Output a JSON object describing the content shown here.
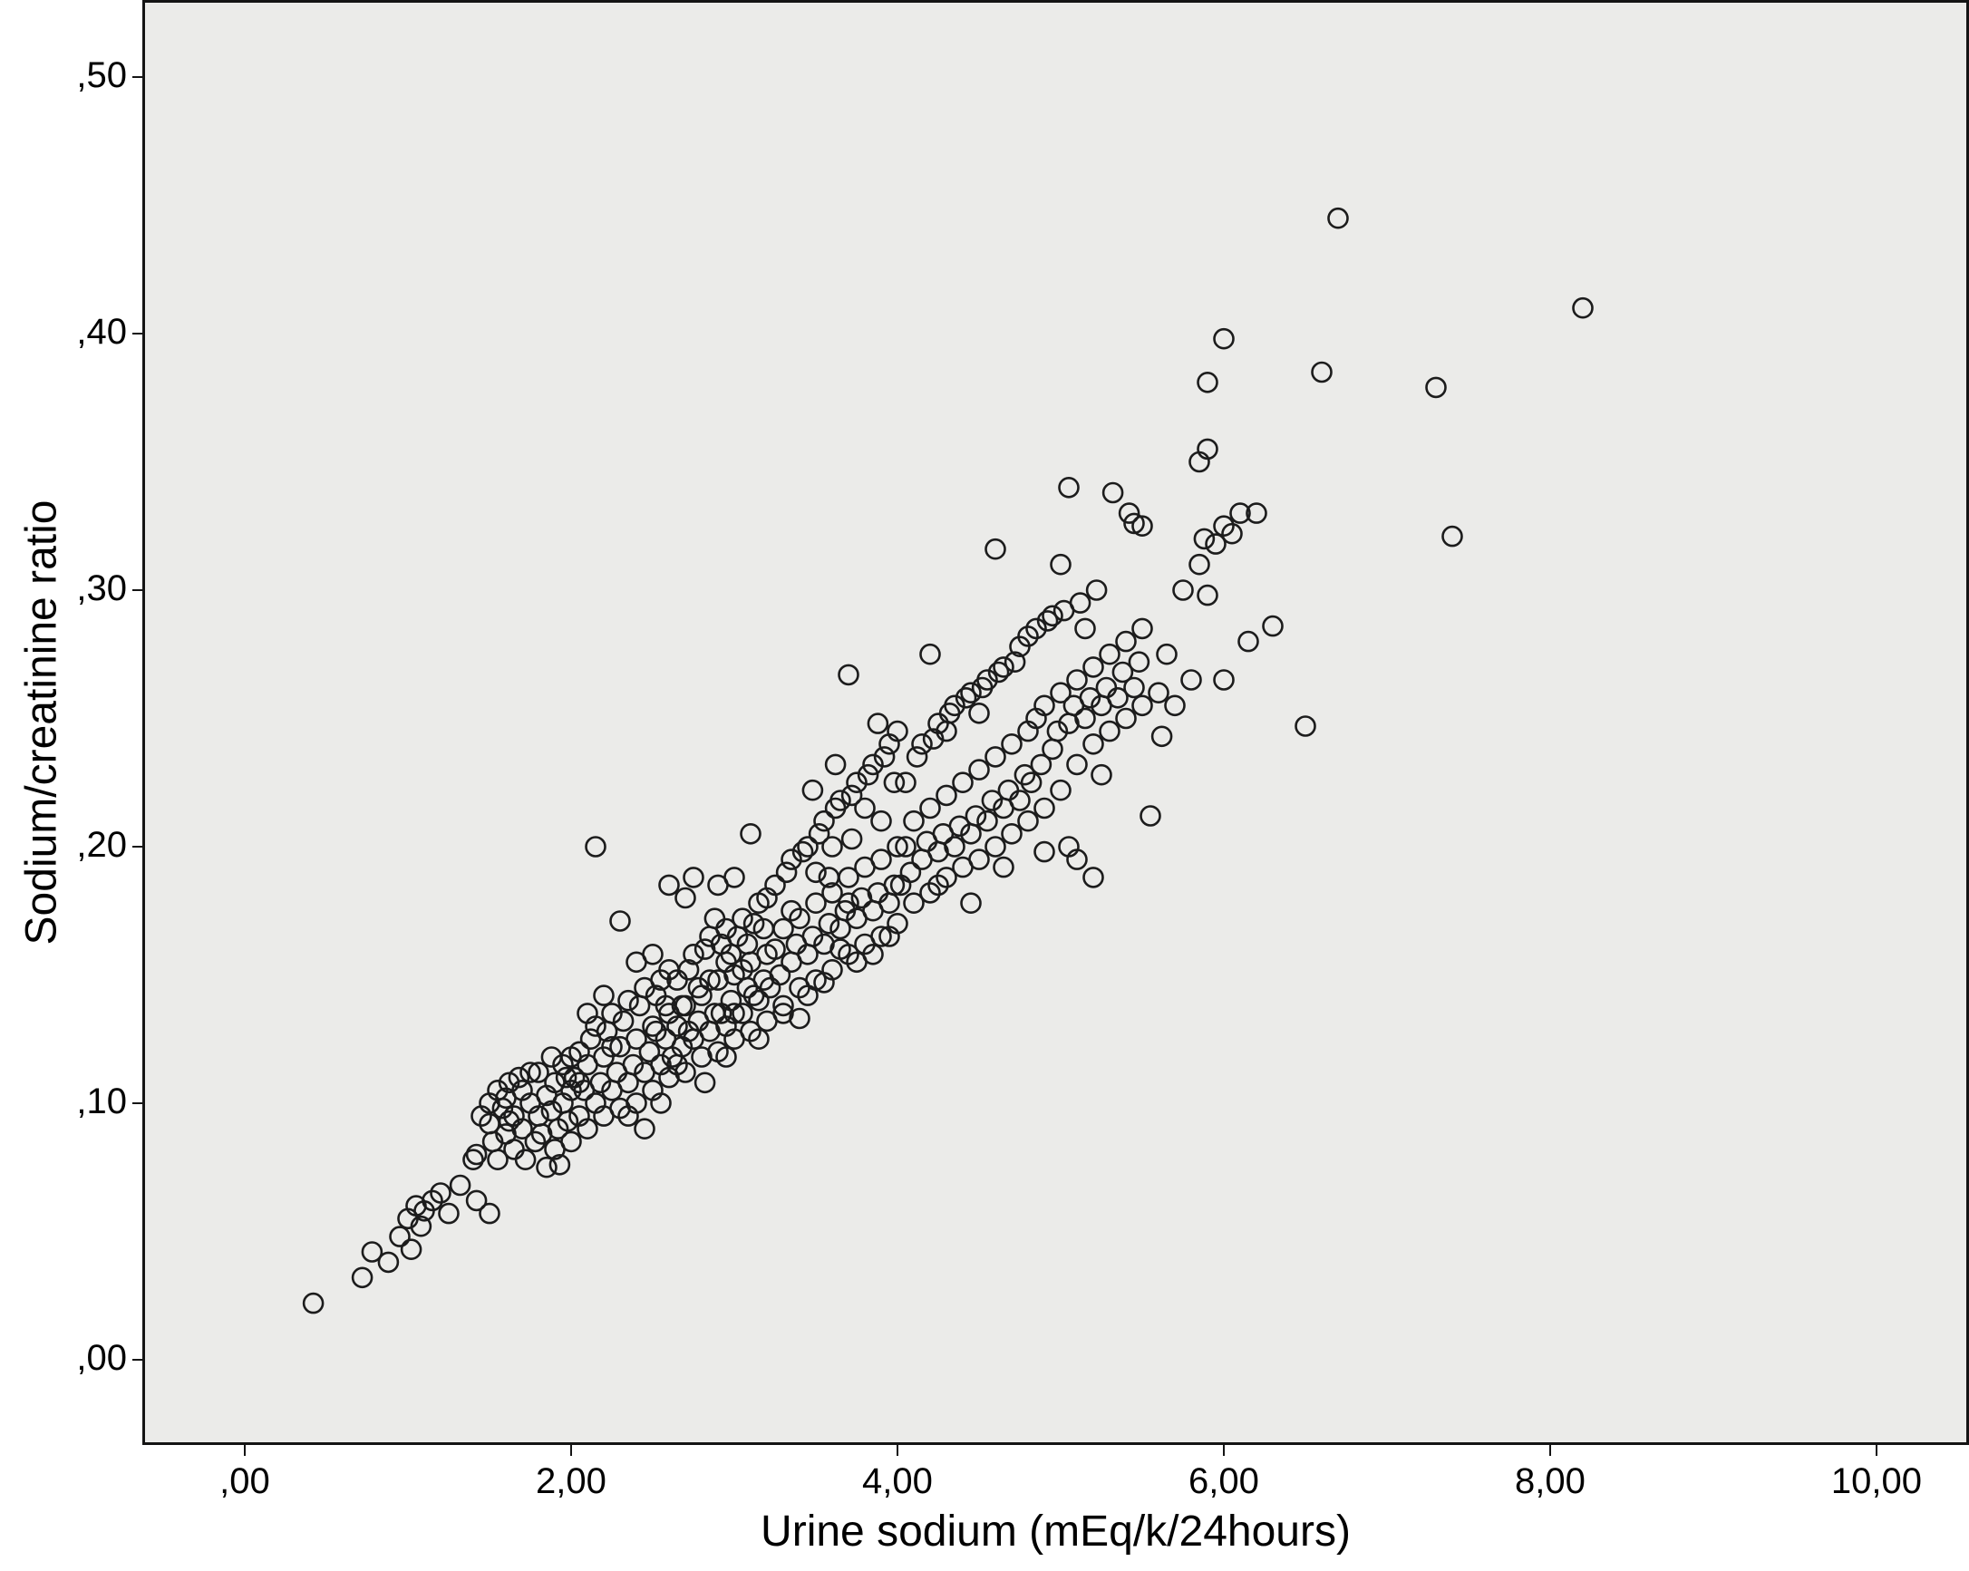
{
  "chart_data": {
    "type": "scatter",
    "title": "",
    "xlabel": "Urine sodium (mEq/k/24hours)",
    "ylabel": "Sodium/creatinine ratio",
    "plot_background": "#ebebe9",
    "marker": {
      "shape": "open-circle",
      "radius": 10.5,
      "stroke": "#1c1c1c",
      "stroke_width": 2.6,
      "fill": "none"
    },
    "grid": false,
    "legend": "none",
    "xlim": [
      -0.611,
      10.55
    ],
    "ylim": [
      -0.0322,
      0.529
    ],
    "x_ticks": {
      "values": [
        0,
        2,
        4,
        6,
        8,
        10
      ],
      "labels": [
        ",00",
        "2,00",
        "4,00",
        "6,00",
        "8,00",
        "10,00"
      ]
    },
    "y_ticks": {
      "values": [
        0,
        0.1,
        0.2,
        0.3,
        0.4,
        0.5
      ],
      "labels": [
        ",00",
        ",10",
        ",20",
        ",30",
        ",40",
        ",50"
      ]
    },
    "points": [
      [
        0.42,
        0.022
      ],
      [
        0.72,
        0.032
      ],
      [
        0.78,
        0.042
      ],
      [
        0.88,
        0.038
      ],
      [
        0.95,
        0.048
      ],
      [
        1.0,
        0.055
      ],
      [
        1.02,
        0.043
      ],
      [
        1.05,
        0.06
      ],
      [
        1.08,
        0.052
      ],
      [
        1.1,
        0.058
      ],
      [
        1.15,
        0.062
      ],
      [
        1.2,
        0.065
      ],
      [
        1.25,
        0.057
      ],
      [
        1.32,
        0.068
      ],
      [
        1.42,
        0.062
      ],
      [
        1.5,
        0.057
      ],
      [
        1.4,
        0.078
      ],
      [
        1.42,
        0.08
      ],
      [
        1.45,
        0.095
      ],
      [
        1.5,
        0.092
      ],
      [
        1.5,
        0.1
      ],
      [
        1.52,
        0.085
      ],
      [
        1.55,
        0.105
      ],
      [
        1.58,
        0.098
      ],
      [
        1.6,
        0.088
      ],
      [
        1.6,
        0.102
      ],
      [
        1.62,
        0.108
      ],
      [
        1.65,
        0.082
      ],
      [
        1.65,
        0.095
      ],
      [
        1.68,
        0.11
      ],
      [
        1.7,
        0.09
      ],
      [
        1.7,
        0.105
      ],
      [
        1.72,
        0.078
      ],
      [
        1.75,
        0.1
      ],
      [
        1.78,
        0.085
      ],
      [
        1.8,
        0.095
      ],
      [
        1.8,
        0.112
      ],
      [
        1.82,
        0.088
      ],
      [
        1.85,
        0.075
      ],
      [
        1.85,
        0.103
      ],
      [
        1.88,
        0.097
      ],
      [
        1.9,
        0.082
      ],
      [
        1.9,
        0.108
      ],
      [
        1.92,
        0.09
      ],
      [
        1.95,
        0.1
      ],
      [
        1.95,
        0.115
      ],
      [
        1.98,
        0.093
      ],
      [
        2.0,
        0.085
      ],
      [
        2.0,
        0.105
      ],
      [
        2.0,
        0.118
      ],
      [
        1.55,
        0.078
      ],
      [
        1.62,
        0.093
      ],
      [
        1.75,
        0.112
      ],
      [
        1.88,
        0.118
      ],
      [
        1.93,
        0.076
      ],
      [
        1.97,
        0.11
      ],
      [
        2.02,
        0.11
      ],
      [
        2.05,
        0.095
      ],
      [
        2.05,
        0.12
      ],
      [
        2.08,
        0.105
      ],
      [
        2.1,
        0.09
      ],
      [
        2.1,
        0.115
      ],
      [
        2.12,
        0.125
      ],
      [
        2.15,
        0.1
      ],
      [
        2.15,
        0.13
      ],
      [
        2.18,
        0.108
      ],
      [
        2.2,
        0.095
      ],
      [
        2.2,
        0.118
      ],
      [
        2.22,
        0.128
      ],
      [
        2.25,
        0.105
      ],
      [
        2.25,
        0.135
      ],
      [
        2.28,
        0.112
      ],
      [
        2.3,
        0.098
      ],
      [
        2.3,
        0.122
      ],
      [
        2.32,
        0.132
      ],
      [
        2.35,
        0.108
      ],
      [
        2.35,
        0.14
      ],
      [
        2.38,
        0.115
      ],
      [
        2.4,
        0.1
      ],
      [
        2.4,
        0.125
      ],
      [
        2.42,
        0.138
      ],
      [
        2.45,
        0.112
      ],
      [
        2.45,
        0.145
      ],
      [
        2.48,
        0.12
      ],
      [
        2.5,
        0.105
      ],
      [
        2.5,
        0.13
      ],
      [
        2.52,
        0.142
      ],
      [
        2.55,
        0.115
      ],
      [
        2.55,
        0.148
      ],
      [
        2.58,
        0.125
      ],
      [
        2.6,
        0.11
      ],
      [
        2.6,
        0.135
      ],
      [
        2.6,
        0.152
      ],
      [
        2.15,
        0.2
      ],
      [
        2.3,
        0.171
      ],
      [
        2.1,
        0.135
      ],
      [
        2.2,
        0.142
      ],
      [
        2.4,
        0.155
      ],
      [
        2.5,
        0.158
      ],
      [
        2.35,
        0.095
      ],
      [
        2.45,
        0.09
      ],
      [
        2.55,
        0.1
      ],
      [
        2.05,
        0.108
      ],
      [
        2.25,
        0.122
      ],
      [
        2.52,
        0.128
      ],
      [
        2.58,
        0.138
      ],
      [
        2.62,
        0.118
      ],
      [
        2.65,
        0.13
      ],
      [
        2.65,
        0.148
      ],
      [
        2.68,
        0.122
      ],
      [
        2.7,
        0.112
      ],
      [
        2.7,
        0.138
      ],
      [
        2.72,
        0.152
      ],
      [
        2.75,
        0.125
      ],
      [
        2.75,
        0.158
      ],
      [
        2.78,
        0.132
      ],
      [
        2.8,
        0.118
      ],
      [
        2.8,
        0.142
      ],
      [
        2.82,
        0.16
      ],
      [
        2.85,
        0.128
      ],
      [
        2.85,
        0.165
      ],
      [
        2.88,
        0.135
      ],
      [
        2.9,
        0.12
      ],
      [
        2.9,
        0.148
      ],
      [
        2.92,
        0.162
      ],
      [
        2.95,
        0.13
      ],
      [
        2.95,
        0.168
      ],
      [
        2.98,
        0.14
      ],
      [
        3.0,
        0.125
      ],
      [
        3.0,
        0.15
      ],
      [
        3.02,
        0.165
      ],
      [
        3.05,
        0.135
      ],
      [
        3.05,
        0.172
      ],
      [
        3.08,
        0.145
      ],
      [
        3.1,
        0.128
      ],
      [
        3.1,
        0.155
      ],
      [
        3.12,
        0.17
      ],
      [
        3.15,
        0.14
      ],
      [
        3.15,
        0.178
      ],
      [
        3.18,
        0.148
      ],
      [
        3.2,
        0.132
      ],
      [
        3.2,
        0.158
      ],
      [
        3.2,
        0.18
      ],
      [
        2.7,
        0.18
      ],
      [
        2.75,
        0.188
      ],
      [
        2.9,
        0.185
      ],
      [
        3.0,
        0.188
      ],
      [
        2.65,
        0.115
      ],
      [
        2.85,
        0.148
      ],
      [
        2.95,
        0.118
      ],
      [
        3.05,
        0.152
      ],
      [
        3.15,
        0.125
      ],
      [
        2.88,
        0.172
      ],
      [
        2.78,
        0.145
      ],
      [
        3.08,
        0.162
      ],
      [
        2.92,
        0.135
      ],
      [
        2.72,
        0.128
      ],
      [
        3.18,
        0.168
      ],
      [
        2.82,
        0.108
      ],
      [
        3.1,
        0.205
      ],
      [
        2.95,
        0.155
      ],
      [
        2.6,
        0.185
      ],
      [
        3.0,
        0.135
      ],
      [
        2.68,
        0.138
      ],
      [
        3.12,
        0.142
      ],
      [
        2.98,
        0.158
      ],
      [
        3.22,
        0.145
      ],
      [
        3.25,
        0.16
      ],
      [
        3.25,
        0.185
      ],
      [
        3.28,
        0.15
      ],
      [
        3.3,
        0.138
      ],
      [
        3.3,
        0.168
      ],
      [
        3.32,
        0.19
      ],
      [
        3.35,
        0.155
      ],
      [
        3.35,
        0.195
      ],
      [
        3.38,
        0.162
      ],
      [
        3.4,
        0.145
      ],
      [
        3.4,
        0.172
      ],
      [
        3.42,
        0.198
      ],
      [
        3.45,
        0.158
      ],
      [
        3.45,
        0.2
      ],
      [
        3.48,
        0.165
      ],
      [
        3.5,
        0.148
      ],
      [
        3.5,
        0.178
      ],
      [
        3.52,
        0.205
      ],
      [
        3.55,
        0.162
      ],
      [
        3.55,
        0.21
      ],
      [
        3.58,
        0.17
      ],
      [
        3.6,
        0.152
      ],
      [
        3.6,
        0.182
      ],
      [
        3.62,
        0.215
      ],
      [
        3.65,
        0.168
      ],
      [
        3.65,
        0.218
      ],
      [
        3.68,
        0.175
      ],
      [
        3.7,
        0.158
      ],
      [
        3.7,
        0.188
      ],
      [
        3.7,
        0.267
      ],
      [
        3.72,
        0.22
      ],
      [
        3.75,
        0.172
      ],
      [
        3.75,
        0.225
      ],
      [
        3.78,
        0.18
      ],
      [
        3.8,
        0.162
      ],
      [
        3.8,
        0.192
      ],
      [
        3.82,
        0.228
      ],
      [
        3.85,
        0.175
      ],
      [
        3.85,
        0.232
      ],
      [
        3.88,
        0.182
      ],
      [
        3.9,
        0.165
      ],
      [
        3.9,
        0.195
      ],
      [
        3.92,
        0.235
      ],
      [
        3.95,
        0.178
      ],
      [
        3.95,
        0.24
      ],
      [
        3.98,
        0.185
      ],
      [
        4.0,
        0.17
      ],
      [
        4.0,
        0.2
      ],
      [
        4.0,
        0.245
      ],
      [
        3.3,
        0.135
      ],
      [
        3.45,
        0.142
      ],
      [
        3.6,
        0.2
      ],
      [
        3.75,
        0.155
      ],
      [
        3.9,
        0.21
      ],
      [
        3.35,
        0.175
      ],
      [
        3.5,
        0.19
      ],
      [
        3.65,
        0.16
      ],
      [
        3.8,
        0.215
      ],
      [
        3.95,
        0.165
      ],
      [
        3.4,
        0.133
      ],
      [
        3.55,
        0.147
      ],
      [
        3.7,
        0.178
      ],
      [
        3.85,
        0.158
      ],
      [
        3.98,
        0.225
      ],
      [
        3.62,
        0.232
      ],
      [
        3.48,
        0.222
      ],
      [
        3.88,
        0.248
      ],
      [
        3.72,
        0.203
      ],
      [
        3.58,
        0.188
      ],
      [
        4.02,
        0.185
      ],
      [
        4.05,
        0.2
      ],
      [
        4.05,
        0.225
      ],
      [
        4.08,
        0.19
      ],
      [
        4.1,
        0.178
      ],
      [
        4.1,
        0.21
      ],
      [
        4.12,
        0.235
      ],
      [
        4.15,
        0.195
      ],
      [
        4.15,
        0.24
      ],
      [
        4.18,
        0.202
      ],
      [
        4.2,
        0.182
      ],
      [
        4.2,
        0.215
      ],
      [
        4.2,
        0.275
      ],
      [
        4.22,
        0.242
      ],
      [
        4.25,
        0.198
      ],
      [
        4.25,
        0.248
      ],
      [
        4.28,
        0.205
      ],
      [
        4.3,
        0.188
      ],
      [
        4.3,
        0.22
      ],
      [
        4.32,
        0.252
      ],
      [
        4.35,
        0.2
      ],
      [
        4.35,
        0.255
      ],
      [
        4.38,
        0.208
      ],
      [
        4.4,
        0.192
      ],
      [
        4.4,
        0.225
      ],
      [
        4.42,
        0.258
      ],
      [
        4.45,
        0.205
      ],
      [
        4.45,
        0.26
      ],
      [
        4.48,
        0.212
      ],
      [
        4.5,
        0.195
      ],
      [
        4.5,
        0.23
      ],
      [
        4.52,
        0.262
      ],
      [
        4.55,
        0.21
      ],
      [
        4.55,
        0.265
      ],
      [
        4.58,
        0.218
      ],
      [
        4.6,
        0.2
      ],
      [
        4.6,
        0.235
      ],
      [
        4.6,
        0.316
      ],
      [
        4.62,
        0.268
      ],
      [
        4.65,
        0.215
      ],
      [
        4.65,
        0.27
      ],
      [
        4.68,
        0.222
      ],
      [
        4.7,
        0.205
      ],
      [
        4.7,
        0.24
      ],
      [
        4.72,
        0.272
      ],
      [
        4.75,
        0.218
      ],
      [
        4.75,
        0.278
      ],
      [
        4.78,
        0.228
      ],
      [
        4.8,
        0.21
      ],
      [
        4.8,
        0.245
      ],
      [
        4.8,
        0.282
      ],
      [
        4.3,
        0.245
      ],
      [
        4.5,
        0.252
      ],
      [
        4.25,
        0.185
      ],
      [
        4.45,
        0.178
      ],
      [
        4.65,
        0.192
      ],
      [
        4.82,
        0.225
      ],
      [
        4.85,
        0.25
      ],
      [
        4.85,
        0.285
      ],
      [
        4.88,
        0.232
      ],
      [
        4.9,
        0.215
      ],
      [
        4.9,
        0.255
      ],
      [
        4.92,
        0.288
      ],
      [
        4.95,
        0.238
      ],
      [
        4.95,
        0.29
      ],
      [
        4.98,
        0.245
      ],
      [
        5.0,
        0.222
      ],
      [
        5.0,
        0.26
      ],
      [
        5.0,
        0.31
      ],
      [
        5.02,
        0.292
      ],
      [
        5.05,
        0.248
      ],
      [
        5.05,
        0.34
      ],
      [
        5.08,
        0.255
      ],
      [
        5.1,
        0.232
      ],
      [
        5.1,
        0.265
      ],
      [
        5.12,
        0.295
      ],
      [
        5.15,
        0.25
      ],
      [
        5.15,
        0.285
      ],
      [
        5.18,
        0.258
      ],
      [
        5.2,
        0.24
      ],
      [
        5.2,
        0.27
      ],
      [
        5.22,
        0.3
      ],
      [
        5.25,
        0.255
      ],
      [
        5.25,
        0.228
      ],
      [
        5.28,
        0.262
      ],
      [
        5.3,
        0.245
      ],
      [
        5.3,
        0.275
      ],
      [
        5.32,
        0.338
      ],
      [
        5.35,
        0.258
      ],
      [
        5.38,
        0.268
      ],
      [
        5.4,
        0.25
      ],
      [
        5.4,
        0.28
      ],
      [
        5.42,
        0.33
      ],
      [
        5.45,
        0.262
      ],
      [
        5.45,
        0.326
      ],
      [
        5.48,
        0.272
      ],
      [
        5.5,
        0.255
      ],
      [
        5.5,
        0.285
      ],
      [
        5.5,
        0.325
      ],
      [
        5.55,
        0.212
      ],
      [
        5.1,
        0.195
      ],
      [
        5.2,
        0.188
      ],
      [
        4.9,
        0.198
      ],
      [
        5.05,
        0.2
      ],
      [
        5.6,
        0.26
      ],
      [
        5.62,
        0.243
      ],
      [
        5.65,
        0.275
      ],
      [
        5.7,
        0.255
      ],
      [
        5.75,
        0.3
      ],
      [
        5.8,
        0.265
      ],
      [
        5.85,
        0.31
      ],
      [
        5.85,
        0.35
      ],
      [
        5.88,
        0.32
      ],
      [
        5.9,
        0.298
      ],
      [
        5.9,
        0.355
      ],
      [
        5.9,
        0.381
      ],
      [
        5.95,
        0.318
      ],
      [
        6.0,
        0.265
      ],
      [
        6.0,
        0.325
      ],
      [
        6.0,
        0.398
      ],
      [
        6.05,
        0.322
      ],
      [
        6.1,
        0.33
      ],
      [
        6.15,
        0.28
      ],
      [
        6.2,
        0.33
      ],
      [
        6.3,
        0.286
      ],
      [
        6.5,
        0.247
      ],
      [
        6.6,
        0.385
      ],
      [
        6.7,
        0.445
      ],
      [
        7.3,
        0.379
      ],
      [
        7.4,
        0.321
      ],
      [
        8.2,
        0.41
      ]
    ]
  }
}
